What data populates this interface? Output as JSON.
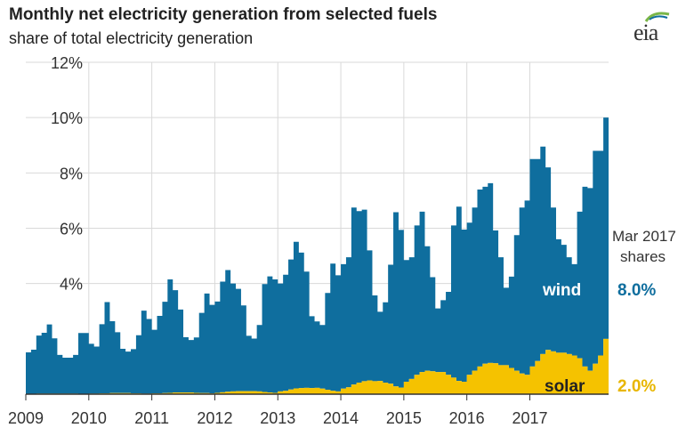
{
  "header": {
    "title": "Monthly net electricity generation from selected fuels",
    "subtitle": "share of total electricity generation",
    "logo": "eia"
  },
  "colors": {
    "wind": "#0f6e9e",
    "solar": "#f5c200",
    "grid": "#d9d9d9",
    "axis": "#333333"
  },
  "annotation": {
    "line1": "Mar 2017",
    "line2": "shares"
  },
  "chart_data": {
    "type": "area",
    "title": "Monthly net electricity generation from selected fuels",
    "subtitle": "share of total electricity generation",
    "xlabel": "",
    "ylabel": "",
    "ylim": [
      0,
      12
    ],
    "yticks": [
      "12%",
      "10%",
      "8%",
      "6%",
      "4%"
    ],
    "xticks": [
      "2009",
      "2010",
      "2011",
      "2012",
      "2013",
      "2014",
      "2015",
      "2016",
      "2017"
    ],
    "start": "2009-01",
    "grid": true,
    "stacked": true,
    "series": [
      {
        "name": "solar",
        "end_label": "2.0%",
        "values": [
          0.01,
          0.01,
          0.02,
          0.02,
          0.02,
          0.02,
          0.02,
          0.02,
          0.02,
          0.02,
          0.01,
          0.01,
          0.02,
          0.02,
          0.03,
          0.03,
          0.04,
          0.04,
          0.04,
          0.04,
          0.03,
          0.03,
          0.02,
          0.02,
          0.03,
          0.03,
          0.04,
          0.05,
          0.06,
          0.06,
          0.06,
          0.06,
          0.05,
          0.04,
          0.04,
          0.03,
          0.05,
          0.07,
          0.09,
          0.1,
          0.11,
          0.11,
          0.11,
          0.11,
          0.1,
          0.08,
          0.06,
          0.05,
          0.1,
          0.12,
          0.17,
          0.21,
          0.22,
          0.23,
          0.22,
          0.23,
          0.2,
          0.16,
          0.12,
          0.1,
          0.2,
          0.25,
          0.35,
          0.42,
          0.47,
          0.5,
          0.47,
          0.48,
          0.42,
          0.38,
          0.28,
          0.24,
          0.45,
          0.55,
          0.7,
          0.8,
          0.85,
          0.83,
          0.8,
          0.8,
          0.7,
          0.6,
          0.48,
          0.45,
          0.7,
          0.85,
          1.0,
          1.1,
          1.13,
          1.12,
          1.05,
          1.05,
          0.95,
          0.85,
          0.75,
          0.7,
          1.0,
          1.2,
          1.45,
          1.6,
          1.55,
          1.5,
          1.5,
          1.45,
          1.4,
          1.3,
          1.0,
          0.85,
          1.1,
          1.4,
          2.0
        ],
        "values_note": "solar share in percent, monthly Jan 2009 - Mar 2017"
      },
      {
        "name": "wind",
        "end_label": "8.0%",
        "values": [
          1.5,
          1.6,
          2.1,
          2.2,
          2.5,
          2.0,
          1.4,
          1.3,
          1.3,
          1.4,
          2.2,
          2.2,
          1.8,
          1.7,
          2.5,
          3.3,
          2.6,
          2.2,
          1.6,
          1.5,
          1.6,
          2.1,
          3.0,
          2.7,
          2.3,
          2.8,
          3.3,
          4.1,
          3.7,
          3.0,
          2.0,
          1.9,
          2.0,
          2.9,
          3.6,
          3.2,
          3.3,
          4.0,
          4.4,
          3.9,
          3.7,
          3.1,
          2.0,
          1.9,
          2.4,
          3.9,
          4.2,
          4.1,
          3.9,
          4.2,
          4.7,
          5.3,
          4.9,
          4.2,
          2.6,
          2.4,
          2.3,
          3.5,
          4.6,
          4.2,
          4.5,
          4.7,
          6.4,
          6.2,
          6.2,
          4.7,
          3.1,
          2.5,
          2.9,
          4.3,
          6.3,
          5.7,
          4.4,
          4.4,
          5.4,
          5.8,
          4.5,
          3.4,
          2.3,
          2.6,
          3.0,
          5.5,
          6.3,
          5.5,
          5.5,
          5.9,
          6.4,
          6.4,
          6.5,
          4.8,
          3.9,
          2.8,
          3.3,
          4.9,
          6.0,
          6.3,
          7.5,
          7.3,
          7.5,
          6.6,
          5.2,
          4.1,
          3.9,
          3.5,
          3.3,
          5.3,
          6.5,
          6.6,
          7.7,
          7.4,
          8.0
        ],
        "values_note": "wind share in percent, monthly Jan 2009 - Mar 2017"
      }
    ]
  }
}
